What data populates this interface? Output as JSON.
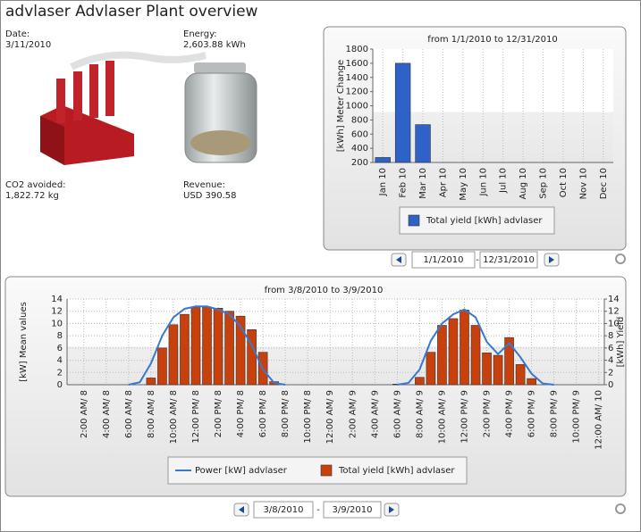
{
  "header": {
    "title": "advlaser Advlaser Plant overview"
  },
  "info": {
    "date_label": "Date:",
    "date": "3/11/2010",
    "energy_label": "Energy:",
    "energy": "2,603.88 kWh",
    "co2_label": "CO2 avoided:",
    "co2": "1,822.72 kg",
    "revenue_label": "Revenue:",
    "revenue": "USD 390.58"
  },
  "chart_data": [
    {
      "type": "bar",
      "title": "from 1/1/2010 to 12/31/2010",
      "y_label": "[kWh] Meter Change",
      "categories": [
        "Jan 10",
        "Feb 10",
        "Mar 10",
        "Apr 10",
        "May 10",
        "Jun 10",
        "Jul 10",
        "Aug 10",
        "Sep 10",
        "Oct 10",
        "Nov 10",
        "Dec 10"
      ],
      "series": [
        {
          "name": "Total yield [kWh] advlaser",
          "color": "#2f62c8",
          "values": [
            270,
            1600,
            734,
            null,
            null,
            null,
            null,
            null,
            null,
            null,
            null,
            null
          ]
        }
      ],
      "ylim": [
        200,
        1800
      ],
      "yticks": [
        200,
        400,
        600,
        800,
        1000,
        1200,
        1400,
        1600,
        1800
      ],
      "grid": "x"
    },
    {
      "type": "combo",
      "title": "from 3/8/2010 to 3/9/2010",
      "y_label": "[kW] Mean values",
      "y2_label": "[kWh] Yield",
      "categories": [
        null,
        "2:00 AM/ 8",
        null,
        "4:00 AM/ 8",
        null,
        "6:00 AM/ 8",
        null,
        "8:00 AM/ 8",
        null,
        "10:00 AM/ 8",
        null,
        "12:00 PM/ 8",
        null,
        "2:00 PM/ 8",
        null,
        "4:00 PM/ 8",
        null,
        "6:00 PM/ 8",
        null,
        "8:00 PM/ 8",
        null,
        "10:00 PM/ 8",
        null,
        "12:00 AM/ 9",
        null,
        "2:00 AM/ 9",
        null,
        "4:00 AM/ 9",
        null,
        "6:00 AM/ 9",
        null,
        "8:00 AM/ 9",
        null,
        "10:00 AM/ 9",
        null,
        "12:00 PM/ 9",
        null,
        "2:00 PM/ 9",
        null,
        "4:00 PM/ 9",
        null,
        "6:00 PM/ 9",
        null,
        "8:00 PM/ 9",
        null,
        "10:00 PM/ 9",
        null,
        "12:00 AM/ 10"
      ],
      "series": [
        {
          "name": "Power [kW] advlaser",
          "type": "line",
          "color": "#3a78d0",
          "values": [
            null,
            null,
            null,
            null,
            null,
            0,
            0.4,
            3.5,
            8,
            11,
            12.4,
            12.8,
            12.8,
            12.3,
            11.5,
            9.5,
            6.5,
            2.5,
            0.3,
            0,
            null,
            null,
            null,
            null,
            null,
            null,
            null,
            null,
            null,
            0,
            0.3,
            2.5,
            7.2,
            10,
            11.5,
            12.3,
            11,
            7,
            5,
            6.8,
            4.5,
            1.8,
            0.2,
            0,
            null,
            null,
            null,
            null
          ]
        },
        {
          "name": "Total yield [kWh] advlaser",
          "type": "bar",
          "axis": "y2",
          "color": "#c8400c",
          "values": [
            null,
            null,
            null,
            null,
            null,
            null,
            null,
            1.1,
            6.0,
            9.8,
            11.5,
            12.6,
            12.7,
            12.5,
            12.0,
            11.2,
            9.0,
            5.3,
            0.5,
            null,
            null,
            null,
            null,
            null,
            null,
            null,
            null,
            null,
            null,
            0.1,
            null,
            1.2,
            5.3,
            9.7,
            10.8,
            12.2,
            9.7,
            5.2,
            4.8,
            7.7,
            3.3,
            1.0,
            null,
            null,
            null,
            null,
            null,
            null
          ]
        }
      ],
      "ylim": [
        0,
        14
      ],
      "yticks": [
        0,
        2,
        4,
        6,
        8,
        10,
        12,
        14
      ],
      "y2lim": [
        0,
        14
      ],
      "y2ticks": [
        0,
        2,
        4,
        6,
        8,
        10,
        12,
        14
      ],
      "grid": "both"
    }
  ],
  "controls": [
    {
      "from": "1/1/2010",
      "separator": "-",
      "to": "12/31/2010"
    },
    {
      "from": "3/8/2010",
      "separator": "-",
      "to": "3/9/2010"
    }
  ]
}
